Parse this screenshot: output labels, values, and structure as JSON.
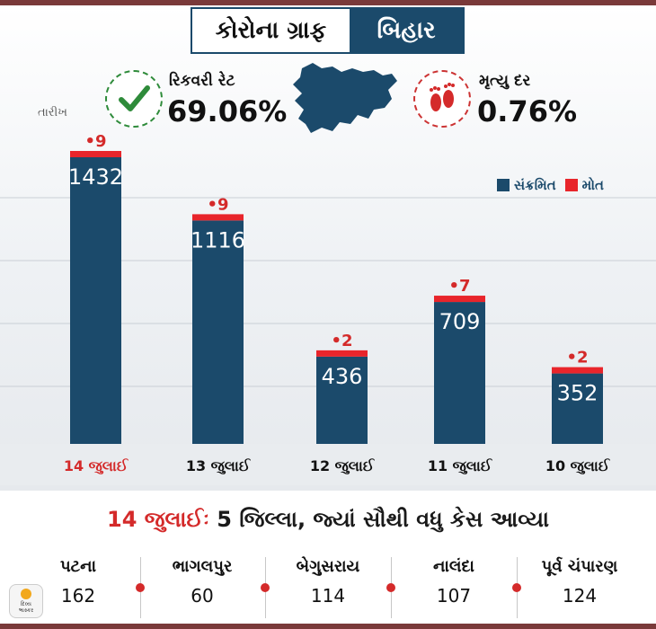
{
  "header": {
    "title_left": "કોરોના ગ્રાફ",
    "title_right": "બિહાર"
  },
  "stats": {
    "recovery_label": "રિકવરી રેટ",
    "recovery_value": "69.06%",
    "death_label": "મૃત્યુ દર",
    "death_value": "0.76%"
  },
  "date_heading": "તારીખ",
  "legend": {
    "infected": "સંક્રમિત",
    "deaths": "મોત"
  },
  "colors": {
    "infected": "#1b4a6b",
    "deaths": "#e8252b",
    "highlight_date": "#d42a2a",
    "recovery_check": "#2e8b3a"
  },
  "chart_data": {
    "type": "bar",
    "categories": [
      "14 જુલાઈ",
      "13 જુલાઈ",
      "12 જુલાઈ",
      "11 જુલાઈ",
      "10 જુલાઈ"
    ],
    "series": [
      {
        "name": "સંક્રમિત",
        "values": [
          1432,
          1116,
          436,
          709,
          352
        ]
      },
      {
        "name": "મોત",
        "values": [
          9,
          9,
          2,
          7,
          2
        ]
      }
    ],
    "bar_labels": [
      "1432",
      "1116",
      "436",
      "709",
      "352"
    ],
    "death_labels": [
      "•9",
      "•9",
      "•2",
      "•7",
      "•2"
    ],
    "ylim": [
      0,
      1500
    ],
    "grid": true,
    "legend_position": "top-right"
  },
  "bottom": {
    "title_date": "14 જુલાઈઃ",
    "title_rest": " 5 જિલ્લા, જ્યાં સૌથી વધુ કેસ આવ્યા",
    "districts": [
      {
        "name": "પટના",
        "count": "162"
      },
      {
        "name": "ભાગલપુર",
        "count": "60"
      },
      {
        "name": "બેગુસરાય",
        "count": "114"
      },
      {
        "name": "નાલંદા",
        "count": "107"
      },
      {
        "name": "પૂર્વ ચંપારણ",
        "count": "124"
      }
    ]
  },
  "logo": {
    "line1": "દિવ્ય",
    "line2": "ભાસ્કર"
  }
}
